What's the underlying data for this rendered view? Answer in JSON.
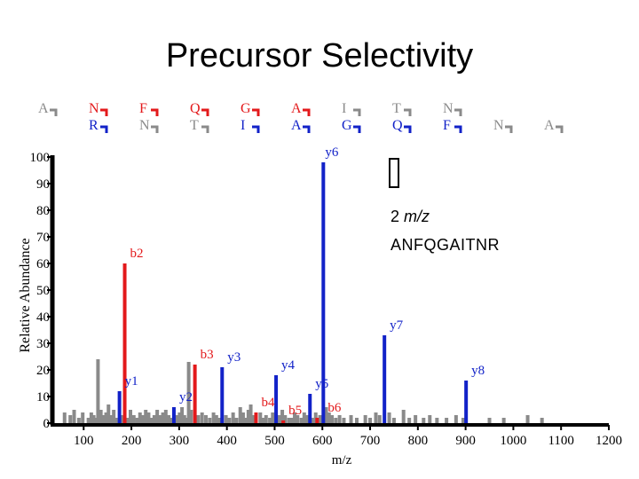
{
  "slide": {
    "title": "Precursor Selectivity"
  },
  "annotation": {
    "charge_prefix": "2",
    "charge_unit": "m/z",
    "peptide": "ANFQGAITNR"
  },
  "sequence": {
    "top": [
      "A",
      "N",
      "F",
      "Q",
      "G",
      "A",
      "I",
      "T",
      "N"
    ],
    "top_highlight": [
      false,
      true,
      true,
      true,
      true,
      true,
      false,
      false,
      false
    ],
    "bottom": [
      "R",
      "N",
      "T",
      "I",
      "A",
      "G",
      "Q",
      "F",
      "N",
      "A"
    ],
    "bottom_highlight": [
      true,
      false,
      false,
      true,
      true,
      true,
      true,
      true,
      false,
      false
    ]
  },
  "colors": {
    "b_ion": "#e3191b",
    "y_ion": "#1222c8",
    "other": "#8a8a8a",
    "unmatched_letter": "#8a8a8a"
  },
  "chart_data": {
    "type": "bar",
    "xlabel": "m/z",
    "ylabel": "Relative Abundance",
    "xlim": [
      40,
      1200
    ],
    "ylim": [
      0,
      100
    ],
    "xticks": [
      100,
      200,
      300,
      400,
      500,
      600,
      700,
      800,
      900,
      1000,
      1100,
      1200
    ],
    "yticks": [
      0,
      10,
      20,
      30,
      40,
      50,
      60,
      70,
      80,
      90,
      100
    ],
    "labeled_peaks": [
      {
        "label": "y1",
        "ion": "y",
        "mz": 175,
        "intensity": 12
      },
      {
        "label": "b2",
        "ion": "b",
        "mz": 186,
        "intensity": 60
      },
      {
        "label": "y2",
        "ion": "y",
        "mz": 289,
        "intensity": 6
      },
      {
        "label": "b3",
        "ion": "b",
        "mz": 333,
        "intensity": 22
      },
      {
        "label": "y3",
        "ion": "y",
        "mz": 390,
        "intensity": 21
      },
      {
        "label": "b4",
        "ion": "b",
        "mz": 461,
        "intensity": 4
      },
      {
        "label": "y4",
        "ion": "y",
        "mz": 503,
        "intensity": 18
      },
      {
        "label": "b5",
        "ion": "b",
        "mz": 518,
        "intensity": 1
      },
      {
        "label": "y5",
        "ion": "y",
        "mz": 574,
        "intensity": 11
      },
      {
        "label": "y6",
        "ion": "y",
        "mz": 602,
        "intensity": 98
      },
      {
        "label": "b6",
        "ion": "b",
        "mz": 589,
        "intensity": 2
      },
      {
        "label": "y7",
        "ion": "y",
        "mz": 730,
        "intensity": 33
      },
      {
        "label": "y8",
        "ion": "y",
        "mz": 901,
        "intensity": 16
      }
    ],
    "other_peaks": [
      [
        60,
        4
      ],
      [
        72,
        3
      ],
      [
        80,
        5
      ],
      [
        90,
        2
      ],
      [
        98,
        4
      ],
      [
        110,
        2
      ],
      [
        116,
        4
      ],
      [
        121,
        3
      ],
      [
        126,
        2
      ],
      [
        130,
        24
      ],
      [
        136,
        5
      ],
      [
        141,
        3
      ],
      [
        147,
        4
      ],
      [
        152,
        7
      ],
      [
        157,
        3
      ],
      [
        163,
        5
      ],
      [
        168,
        2
      ],
      [
        180,
        3
      ],
      [
        193,
        2
      ],
      [
        198,
        5
      ],
      [
        205,
        3
      ],
      [
        212,
        2
      ],
      [
        218,
        4
      ],
      [
        225,
        3
      ],
      [
        230,
        5
      ],
      [
        236,
        4
      ],
      [
        242,
        2
      ],
      [
        248,
        3
      ],
      [
        254,
        5
      ],
      [
        260,
        3
      ],
      [
        266,
        4
      ],
      [
        272,
        5
      ],
      [
        278,
        3
      ],
      [
        284,
        2
      ],
      [
        296,
        3
      ],
      [
        301,
        4
      ],
      [
        306,
        6
      ],
      [
        311,
        3
      ],
      [
        316,
        2
      ],
      [
        320,
        23
      ],
      [
        325,
        5
      ],
      [
        340,
        3
      ],
      [
        348,
        4
      ],
      [
        356,
        3
      ],
      [
        364,
        2
      ],
      [
        372,
        4
      ],
      [
        378,
        3
      ],
      [
        384,
        2
      ],
      [
        398,
        3
      ],
      [
        405,
        2
      ],
      [
        413,
        4
      ],
      [
        420,
        2
      ],
      [
        428,
        6
      ],
      [
        434,
        4
      ],
      [
        440,
        2
      ],
      [
        445,
        5
      ],
      [
        450,
        7
      ],
      [
        456,
        3
      ],
      [
        470,
        4
      ],
      [
        476,
        2
      ],
      [
        482,
        3
      ],
      [
        490,
        2
      ],
      [
        496,
        4
      ],
      [
        510,
        3
      ],
      [
        516,
        5
      ],
      [
        522,
        3
      ],
      [
        530,
        2
      ],
      [
        536,
        2
      ],
      [
        542,
        4
      ],
      [
        548,
        3
      ],
      [
        556,
        2
      ],
      [
        562,
        4
      ],
      [
        568,
        3
      ],
      [
        580,
        2
      ],
      [
        586,
        4
      ],
      [
        595,
        3
      ],
      [
        608,
        6
      ],
      [
        614,
        4
      ],
      [
        620,
        3
      ],
      [
        628,
        2
      ],
      [
        636,
        3
      ],
      [
        645,
        2
      ],
      [
        660,
        3
      ],
      [
        672,
        2
      ],
      [
        690,
        3
      ],
      [
        700,
        2
      ],
      [
        712,
        4
      ],
      [
        720,
        3
      ],
      [
        740,
        4
      ],
      [
        750,
        2
      ],
      [
        770,
        5
      ],
      [
        782,
        2
      ],
      [
        795,
        3
      ],
      [
        812,
        2
      ],
      [
        825,
        3
      ],
      [
        840,
        2
      ],
      [
        860,
        2
      ],
      [
        880,
        3
      ],
      [
        895,
        2
      ],
      [
        950,
        2
      ],
      [
        980,
        2
      ],
      [
        1030,
        3
      ],
      [
        1060,
        2
      ]
    ]
  }
}
